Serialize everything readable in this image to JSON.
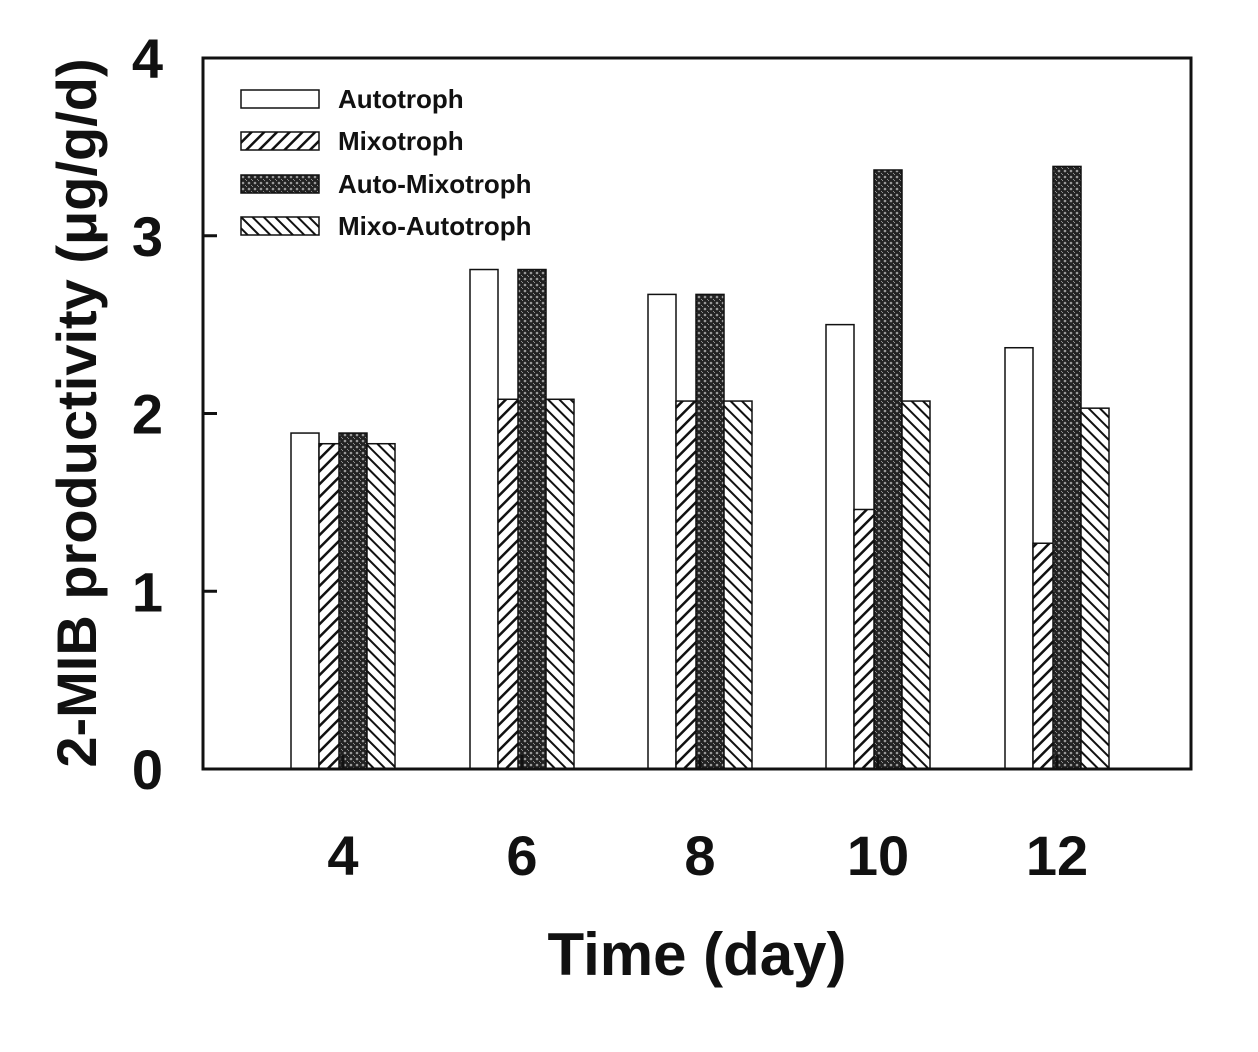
{
  "chart_data": {
    "type": "bar",
    "title": "",
    "xlabel": "Time (day)",
    "ylabel": "2-MIB productivity (μg/g/d)",
    "ylim": [
      0,
      4
    ],
    "yticks": [
      "0",
      "1",
      "2",
      "3",
      "4"
    ],
    "categories": [
      "4",
      "6",
      "8",
      "10",
      "12"
    ],
    "grid": false,
    "legend_position": "top-left",
    "series": [
      {
        "name": "Autotroph",
        "pattern": "blank",
        "values": [
          1.89,
          2.81,
          2.67,
          2.5,
          2.37
        ]
      },
      {
        "name": "Mixotroph",
        "pattern": "diag",
        "values": [
          1.83,
          2.08,
          2.07,
          1.46,
          1.27
        ]
      },
      {
        "name": "Auto-Mixotroph",
        "pattern": "cross",
        "values": [
          1.89,
          2.81,
          2.67,
          3.37,
          3.39
        ]
      },
      {
        "name": "Mixo-Autotroph",
        "pattern": "antidiag",
        "values": [
          1.83,
          2.08,
          2.07,
          2.07,
          2.03
        ]
      }
    ]
  }
}
